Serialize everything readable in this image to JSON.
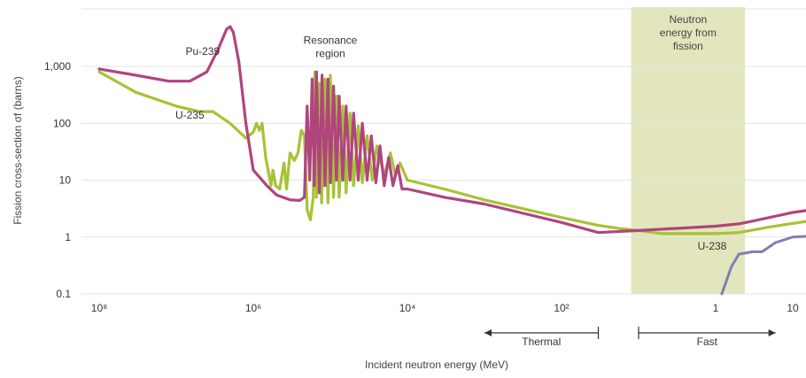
{
  "chart_data": {
    "type": "line",
    "title": "",
    "xlabel": "Incident neutron energy (MeV)",
    "ylabel": "Fission cross-section σf (barns)",
    "x_scale": "log",
    "y_scale": "log",
    "xlim": [
      1e-08,
      20
    ],
    "ylim": [
      0.1,
      8000
    ],
    "grid": "horizontal",
    "colors": {
      "U-235": "#a8c236",
      "Pu-239": "#b0457e",
      "U-238": "#7f7fb0",
      "band": "#e3e6bd",
      "grid": "#e3e3e3"
    },
    "x_ticks": [
      {
        "value": 1e-08,
        "label": "10⁸"
      },
      {
        "value": 1e-06,
        "label": "10⁶"
      },
      {
        "value": 0.0001,
        "label": "10⁴"
      },
      {
        "value": 0.01,
        "label": "10²"
      },
      {
        "value": 1,
        "label": "1"
      },
      {
        "value": 10,
        "label": "10"
      }
    ],
    "y_ticks": [
      {
        "value": 0.1,
        "label": "0.1"
      },
      {
        "value": 1,
        "label": "1"
      },
      {
        "value": 10,
        "label": "10"
      },
      {
        "value": 100,
        "label": "100"
      },
      {
        "value": 1000,
        "label": "1,000"
      }
    ],
    "series": [
      {
        "name": "U-235",
        "points": [
          [
            1e-08,
            800
          ],
          [
            3e-08,
            350
          ],
          [
            1e-07,
            200
          ],
          [
            2e-07,
            160
          ],
          [
            3e-07,
            160
          ],
          [
            5e-07,
            100
          ],
          [
            8e-07,
            55
          ],
          [
            1e-06,
            70
          ],
          [
            1.1e-06,
            100
          ],
          [
            1.2e-06,
            75
          ],
          [
            1.3e-06,
            100
          ],
          [
            1.45e-06,
            25
          ],
          [
            1.7e-06,
            8
          ],
          [
            1.8e-06,
            15
          ],
          [
            1.95e-06,
            8
          ],
          [
            2.2e-06,
            7
          ],
          [
            2.5e-06,
            20
          ],
          [
            2.7e-06,
            7
          ],
          [
            3e-06,
            30
          ],
          [
            3.4e-06,
            22
          ],
          [
            3.8e-06,
            30
          ],
          [
            4.2e-06,
            75
          ],
          [
            4.6e-06,
            60
          ],
          [
            5e-06,
            3
          ],
          [
            5.5e-06,
            2
          ],
          [
            6e-06,
            5
          ],
          [
            6.3e-06,
            800
          ],
          [
            6.6e-06,
            5
          ],
          [
            7.2e-06,
            500
          ],
          [
            7.7e-06,
            4
          ],
          [
            8.5e-06,
            600
          ],
          [
            9.3e-06,
            4
          ],
          [
            1e-05,
            700
          ],
          [
            1.1e-05,
            5
          ],
          [
            1.2e-05,
            300
          ],
          [
            1.3e-05,
            5
          ],
          [
            1.45e-05,
            200
          ],
          [
            1.6e-05,
            6
          ],
          [
            1.8e-05,
            150
          ],
          [
            2e-05,
            8
          ],
          [
            2.3e-05,
            90
          ],
          [
            2.6e-05,
            9
          ],
          [
            3e-05,
            60
          ],
          [
            3.5e-05,
            10
          ],
          [
            4e-05,
            40
          ],
          [
            5e-05,
            12
          ],
          [
            6e-05,
            30
          ],
          [
            7e-05,
            12
          ],
          [
            8e-05,
            20
          ],
          [
            0.0001,
            10
          ],
          [
            0.0003,
            7
          ],
          [
            0.001,
            4.5
          ],
          [
            0.01,
            2.2
          ],
          [
            0.03,
            1.6
          ],
          [
            0.06,
            1.4
          ],
          [
            0.1,
            1.3
          ],
          [
            0.2,
            1.15
          ],
          [
            1,
            1.15
          ],
          [
            2,
            1.2
          ],
          [
            5,
            1.5
          ],
          [
            20,
            2.0
          ]
        ]
      },
      {
        "name": "Pu-239",
        "points": [
          [
            1e-08,
            900
          ],
          [
            3e-08,
            700
          ],
          [
            8e-08,
            550
          ],
          [
            1.5e-07,
            550
          ],
          [
            2.5e-07,
            800
          ],
          [
            3.5e-07,
            2000
          ],
          [
            4.5e-07,
            4500
          ],
          [
            5e-07,
            5000
          ],
          [
            5.5e-07,
            4000
          ],
          [
            6.5e-07,
            1200
          ],
          [
            8e-07,
            100
          ],
          [
            1e-06,
            15
          ],
          [
            1.5e-06,
            8
          ],
          [
            2e-06,
            5.5
          ],
          [
            3e-06,
            4.5
          ],
          [
            4e-06,
            4.4
          ],
          [
            4.6e-06,
            5
          ],
          [
            5e-06,
            200
          ],
          [
            5.4e-06,
            10
          ],
          [
            5.8e-06,
            600
          ],
          [
            6.2e-06,
            8
          ],
          [
            6.6e-06,
            800
          ],
          [
            7.2e-06,
            6
          ],
          [
            7.8e-06,
            700
          ],
          [
            8.5e-06,
            8
          ],
          [
            9.3e-06,
            600
          ],
          [
            1e-05,
            9
          ],
          [
            1.1e-05,
            450
          ],
          [
            1.2e-05,
            10
          ],
          [
            1.3e-05,
            300
          ],
          [
            1.45e-05,
            10
          ],
          [
            1.6e-05,
            200
          ],
          [
            1.8e-05,
            10
          ],
          [
            2e-05,
            150
          ],
          [
            2.3e-05,
            10
          ],
          [
            2.6e-05,
            100
          ],
          [
            3e-05,
            10
          ],
          [
            3.4e-05,
            60
          ],
          [
            3.9e-05,
            9
          ],
          [
            4.4e-05,
            40
          ],
          [
            5e-05,
            8
          ],
          [
            5.7e-05,
            25
          ],
          [
            6.5e-05,
            8
          ],
          [
            7.5e-05,
            18
          ],
          [
            8.5e-05,
            7
          ],
          [
            0.0001,
            7
          ],
          [
            0.0003,
            5
          ],
          [
            0.001,
            3.8
          ],
          [
            0.01,
            1.8
          ],
          [
            0.03,
            1.2
          ],
          [
            0.1,
            1.3
          ],
          [
            1,
            1.55
          ],
          [
            2,
            1.7
          ],
          [
            3,
            1.9
          ],
          [
            10,
            2.7
          ],
          [
            20,
            3.1
          ]
        ]
      },
      {
        "name": "U-238",
        "points": [
          [
            1.2,
            0.1
          ],
          [
            1.6,
            0.3
          ],
          [
            2,
            0.5
          ],
          [
            3,
            0.55
          ],
          [
            4,
            0.55
          ],
          [
            6,
            0.8
          ],
          [
            10,
            1.0
          ],
          [
            20,
            1.05
          ]
        ]
      }
    ],
    "band": {
      "label": "Neutron energy from fission",
      "x_range": [
        0.08,
        2.4
      ]
    },
    "annotations": [
      {
        "text": "Pu-239",
        "x": 2.2e-07,
        "y": 1600
      },
      {
        "text": "U-235",
        "x": 1.5e-07,
        "y": 120
      },
      {
        "text": "Resonance region",
        "x": 1e-05,
        "y": 2000
      },
      {
        "text": "U-238",
        "x": 0.9,
        "y": 0.6
      }
    ],
    "arrows": [
      {
        "label": "Thermal",
        "x_range": [
          0.001,
          0.03
        ],
        "direction": "left"
      },
      {
        "label": "Fast",
        "x_range": [
          0.1,
          6
        ],
        "direction": "right"
      }
    ]
  }
}
